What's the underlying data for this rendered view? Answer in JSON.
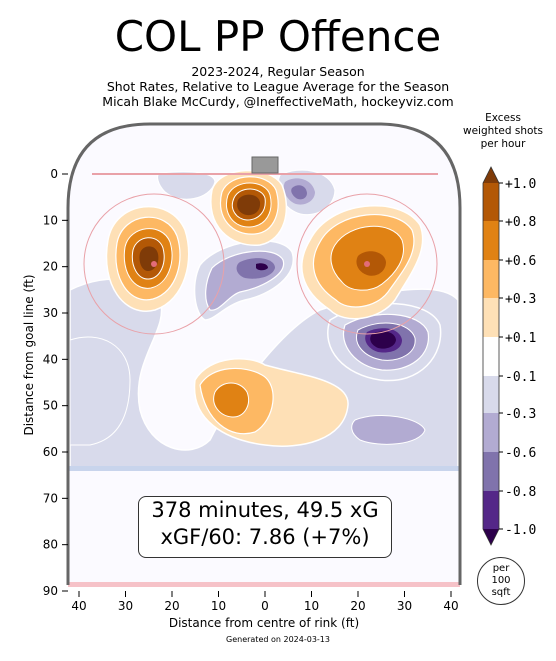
{
  "title": "COL PP Offence",
  "subtitle_lines": [
    "2023-2024, Regular Season",
    "Shot Rates, Relative to League Average for the Season",
    "Micah Blake McCurdy, @IneffectiveMath, hockeyviz.com"
  ],
  "summary": {
    "line1": "378 minutes, 49.5 xG",
    "line2": "xGF/60: 7.86 (+7%)"
  },
  "colorbar": {
    "title_lines": [
      "Excess",
      "weighted shots",
      "per hour"
    ],
    "levels": [
      "+1.0",
      "+0.8",
      "+0.6",
      "+0.3",
      "+0.1",
      "-0.1",
      "-0.3",
      "-0.6",
      "-0.8",
      "-1.0"
    ],
    "colors": [
      "#7f3b08",
      "#b35806",
      "#e08214",
      "#fdb863",
      "#fee0b6",
      "#ffffff",
      "#d8daeb",
      "#b2abd2",
      "#8073ac",
      "#542788",
      "#2d004b"
    ]
  },
  "per_unit": [
    "per",
    "100",
    "sqft"
  ],
  "footer": "Generated on 2024-03-13",
  "chart_data": {
    "type": "heatmap",
    "title": "COL PP Offence",
    "xlabel": "Distance from centre of rink (ft)",
    "ylabel": "Distance from goal line (ft)",
    "x_ticks": [
      "40",
      "30",
      "20",
      "10",
      "0",
      "10",
      "20",
      "30",
      "40"
    ],
    "y_ticks": [
      "0",
      "10",
      "20",
      "30",
      "40",
      "50",
      "60",
      "70",
      "80",
      "90"
    ],
    "xlim": [
      -42,
      42
    ],
    "ylim": [
      90,
      -11
    ],
    "value_range": [
      -1.0,
      1.0
    ],
    "hotspots": [
      {
        "x": 0,
        "y": 5,
        "value": 1.0
      },
      {
        "x": -24,
        "y": 18,
        "value": 1.0
      },
      {
        "x": 22,
        "y": 19,
        "value": 0.8
      },
      {
        "x": -7,
        "y": 49,
        "value": 0.6
      },
      {
        "x": 8,
        "y": 3,
        "value": -0.6
      },
      {
        "x": 0,
        "y": 19,
        "value": -0.8
      },
      {
        "x": -13,
        "y": 28,
        "value": -0.6
      },
      {
        "x": 25,
        "y": 36,
        "value": -1.0
      },
      {
        "x": 30,
        "y": 51,
        "value": -0.3
      },
      {
        "x": -28,
        "y": 45,
        "value": -0.3
      }
    ]
  }
}
